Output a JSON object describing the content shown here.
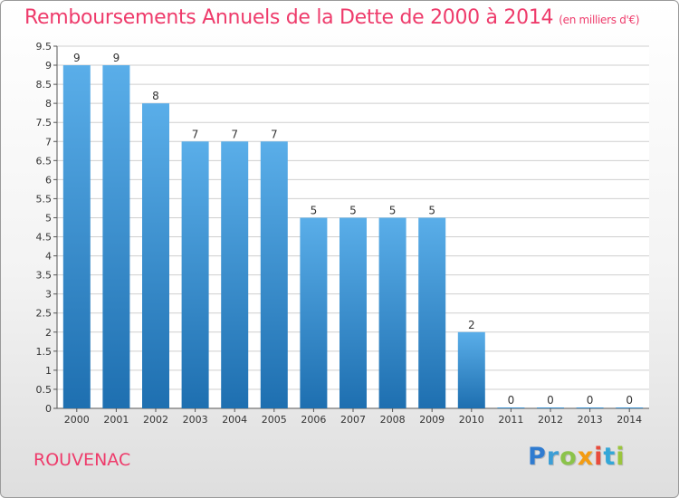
{
  "header": {
    "title": "Remboursements Annuels de la Dette de 2000 à 2014",
    "unit": "(en milliers d'€)"
  },
  "footer": {
    "town": "ROUVENAC",
    "logo": {
      "l1": "P",
      "l2": "r",
      "l3": "o",
      "l4": "x",
      "l5": "i",
      "l6": "t",
      "l7": "i"
    }
  },
  "colors": {
    "title": "#ee3b6b",
    "bar_top": "#5aaee9",
    "bar_bottom": "#1e6fb0",
    "grid": "#cfcfcf"
  },
  "chart_data": {
    "type": "bar",
    "categories": [
      "2000",
      "2001",
      "2002",
      "2003",
      "2004",
      "2005",
      "2006",
      "2007",
      "2008",
      "2009",
      "2010",
      "2011",
      "2012",
      "2013",
      "2014"
    ],
    "values": [
      9,
      9,
      8,
      7,
      7,
      7,
      5,
      5,
      5,
      5,
      2,
      0,
      0,
      0,
      0
    ],
    "data_labels": [
      "9",
      "9",
      "8",
      "7",
      "7",
      "7",
      "5",
      "5",
      "5",
      "5",
      "2",
      "0",
      "0",
      "0",
      "0"
    ],
    "y_ticks": [
      "0",
      "0.5",
      "1",
      "1.5",
      "2",
      "2.5",
      "3",
      "3.5",
      "4",
      "4.5",
      "5",
      "5.5",
      "6",
      "6.5",
      "7",
      "7.5",
      "8",
      "8.5",
      "9",
      "9.5"
    ],
    "ylim": [
      0,
      9.5
    ],
    "grid": true,
    "title": "Remboursements Annuels de la Dette de 2000 à 2014",
    "xlabel": "",
    "ylabel": ""
  }
}
